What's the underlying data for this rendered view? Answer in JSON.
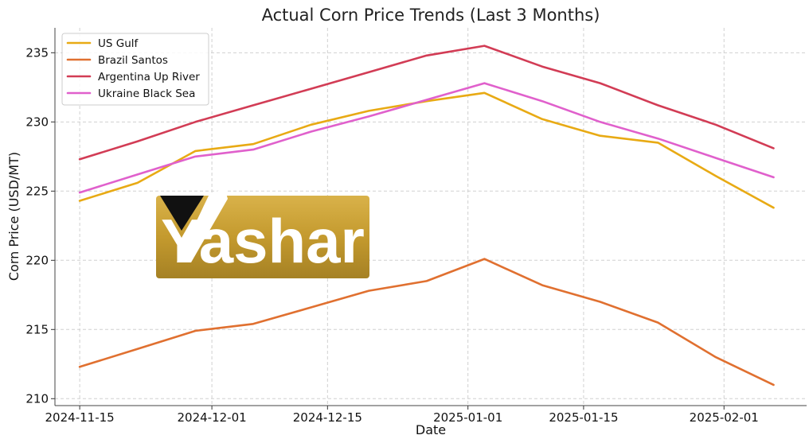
{
  "chart_data": {
    "type": "line",
    "title": "Actual Corn Price Trends (Last 3 Months)",
    "xlabel": "Date",
    "ylabel": "Corn Price (USD/MT)",
    "x": [
      "2024-11-15",
      "2024-11-22",
      "2024-11-29",
      "2024-12-06",
      "2024-12-13",
      "2024-12-20",
      "2024-12-27",
      "2025-01-03",
      "2025-01-10",
      "2025-01-17",
      "2025-01-24",
      "2025-01-31",
      "2025-02-07"
    ],
    "x_ticks": [
      "2024-11-15",
      "2024-12-01",
      "2024-12-15",
      "2025-01-01",
      "2025-01-15",
      "2025-02-01"
    ],
    "xlim": [
      "2024-11-12",
      "2025-02-11"
    ],
    "y_ticks": [
      210,
      215,
      220,
      225,
      230,
      235
    ],
    "ylim": [
      209.5,
      236.8
    ],
    "grid": true,
    "legend_position": "top-left",
    "series": [
      {
        "name": "US Gulf",
        "color": "#E8AA14",
        "values": [
          224.3,
          225.6,
          227.9,
          228.4,
          229.8,
          230.8,
          231.5,
          232.1,
          230.2,
          229.0,
          228.5,
          226.1,
          223.8
        ]
      },
      {
        "name": "Brazil Santos",
        "color": "#E07030",
        "values": [
          212.3,
          213.6,
          214.9,
          215.4,
          216.6,
          217.8,
          218.5,
          220.1,
          218.2,
          217.0,
          215.5,
          213.0,
          211.0
        ]
      },
      {
        "name": "Argentina Up River",
        "color": "#D23C55",
        "values": [
          227.3,
          228.6,
          230.0,
          231.2,
          232.4,
          233.6,
          234.8,
          235.5,
          234.0,
          232.8,
          231.2,
          229.8,
          228.1
        ]
      },
      {
        "name": "Ukraine Black Sea",
        "color": "#E060CC",
        "values": [
          224.9,
          226.2,
          227.5,
          228.0,
          229.3,
          230.4,
          231.6,
          232.8,
          231.5,
          230.0,
          228.8,
          227.4,
          226.0
        ]
      }
    ]
  },
  "watermark": {
    "text": "Yashar",
    "colors": {
      "gold_light": "#D6B044",
      "gold_dark": "#9C7A1E",
      "black": "#111111"
    }
  }
}
